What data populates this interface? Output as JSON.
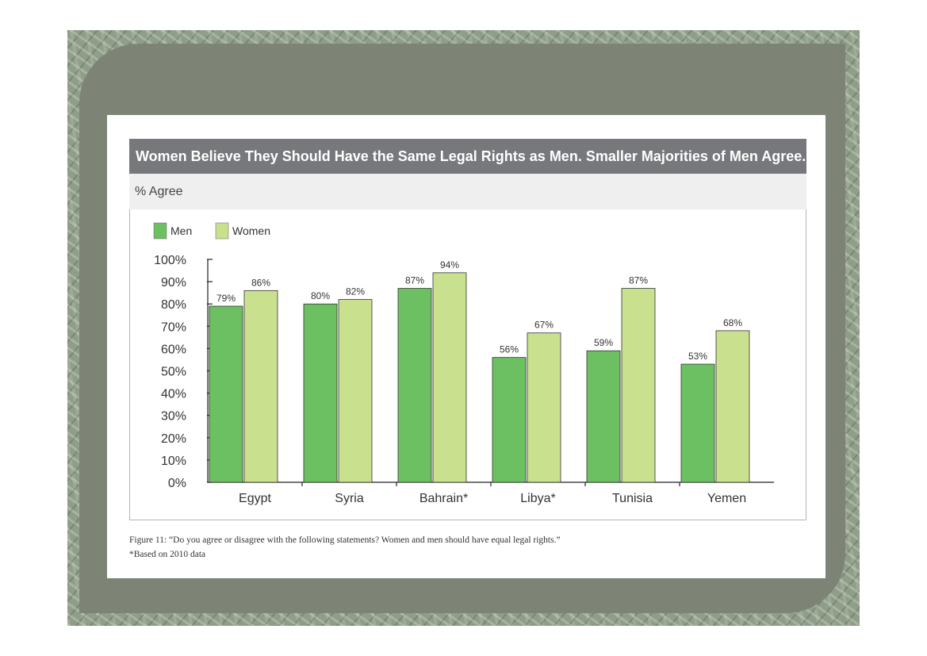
{
  "colors": {
    "men": "#6cc062",
    "women": "#c9e08f",
    "title_bar": "#76787b",
    "frame": "#8f9e88",
    "panel": "#7d8475"
  },
  "chart_data": {
    "type": "bar",
    "title": "Women Believe They Should Have the Same Legal Rights as Men. Smaller Majorities of Men Agree.",
    "subtitle": "% Agree",
    "categories": [
      "Egypt",
      "Syria",
      "Bahrain*",
      "Libya*",
      "Tunisia",
      "Yemen"
    ],
    "series": [
      {
        "name": "Men",
        "values": [
          79,
          80,
          87,
          56,
          59,
          53
        ],
        "labels": [
          "79%",
          "80%",
          "87%",
          "56%",
          "59%",
          "53%"
        ]
      },
      {
        "name": "Women",
        "values": [
          86,
          82,
          94,
          67,
          87,
          68
        ],
        "labels": [
          "86%",
          "82%",
          "94%",
          "67%",
          "87%",
          "68%"
        ]
      }
    ],
    "ylim": [
      0,
      100
    ],
    "yticks": [
      0,
      10,
      20,
      30,
      40,
      50,
      60,
      70,
      80,
      90,
      100
    ],
    "ytick_labels": [
      "0%",
      "10%",
      "20%",
      "30%",
      "40%",
      "50%",
      "60%",
      "70%",
      "80%",
      "90%",
      "100%"
    ],
    "grid": false,
    "legend": "top-left"
  },
  "caption": {
    "figure": "Figure 11: “Do you agree or disagree with the following statements? Women and men should have equal legal rights.”",
    "note": "*Based on 2010 data"
  }
}
